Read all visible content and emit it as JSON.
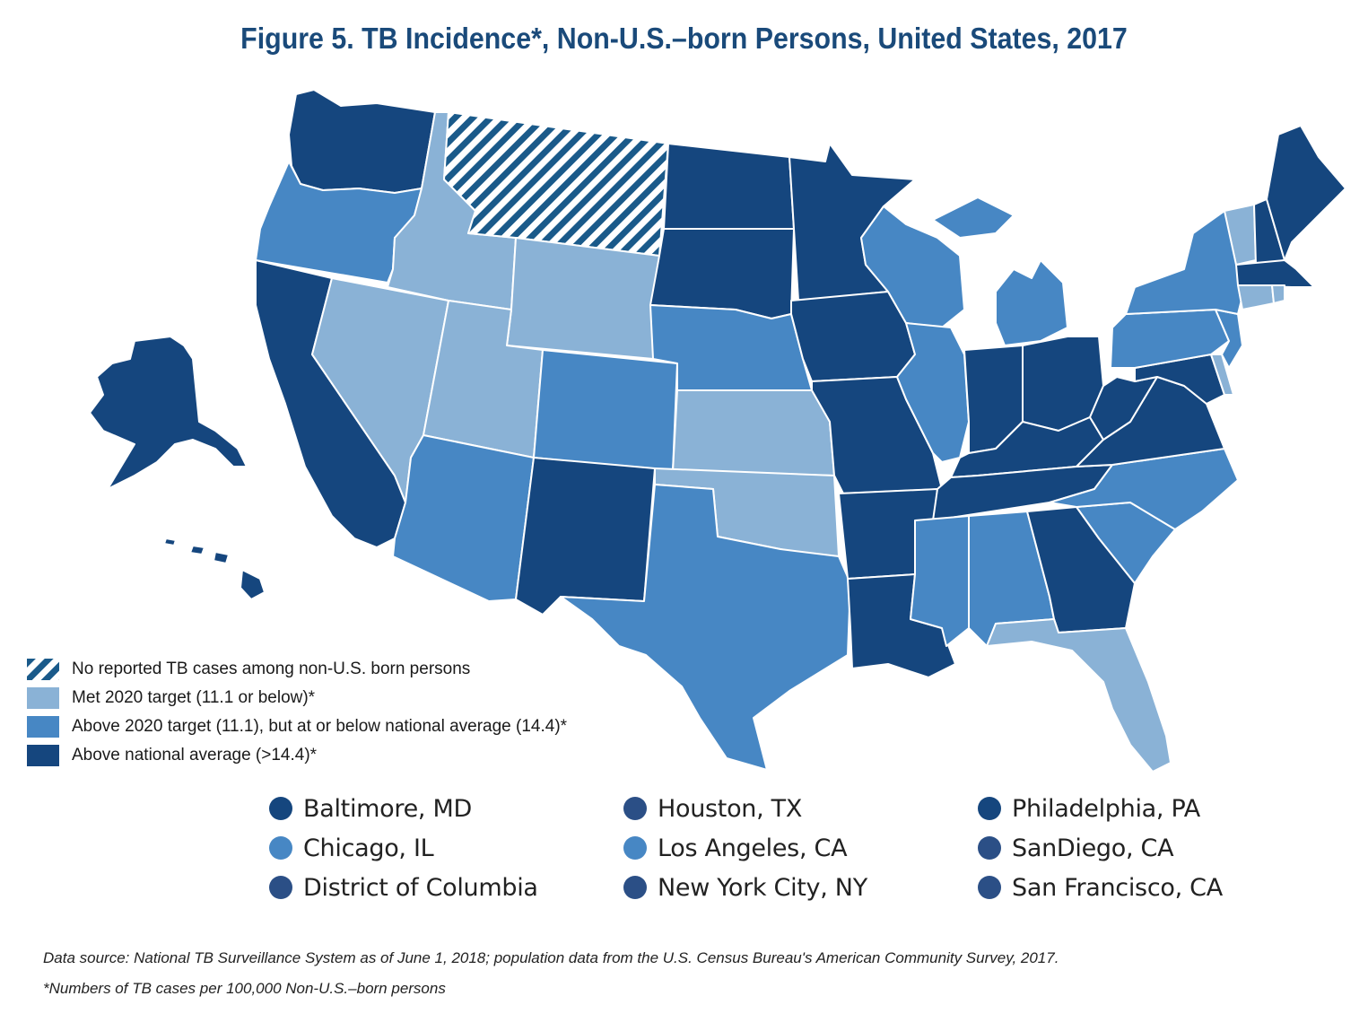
{
  "title": "Figure 5. TB Incidence*, Non-U.S.–born Persons, United States, 2017",
  "colors": {
    "none": "#1a5a8a",
    "met": "#8ab2d6",
    "above_target": "#4787c4",
    "above_national": "#15467e",
    "city_houston": "#2b4f86",
    "border": "#ffffff"
  },
  "legend": [
    {
      "key": "none",
      "label": "No reported TB cases among non-U.S. born persons",
      "pattern": "hatched"
    },
    {
      "key": "met",
      "label": "Met 2020 target (11.1 or below)*"
    },
    {
      "key": "above_target",
      "label": "Above 2020 target (11.1), but at or below national average (14.4)*"
    },
    {
      "key": "above_national",
      "label": "Above national average (>14.4)*"
    }
  ],
  "states": {
    "WA": "above_national",
    "OR": "above_target",
    "CA": "above_national",
    "ID": "met",
    "NV": "met",
    "MT": "none",
    "WY": "met",
    "UT": "met",
    "AZ": "above_target",
    "CO": "above_target",
    "NM": "above_national",
    "ND": "above_national",
    "SD": "above_national",
    "NE": "above_target",
    "KS": "met",
    "OK": "met",
    "TX": "above_target",
    "MN": "above_national",
    "IA": "above_national",
    "MO": "above_national",
    "AR": "above_national",
    "LA": "above_national",
    "WI": "above_target",
    "IL": "above_target",
    "MI": "above_target",
    "IN": "above_national",
    "OH": "above_national",
    "KY": "above_national",
    "TN": "above_national",
    "MS": "above_target",
    "AL": "above_target",
    "GA": "above_national",
    "FL": "met",
    "SC": "above_target",
    "NC": "above_target",
    "VA": "above_national",
    "WV": "above_national",
    "MD": "above_national",
    "DE": "met",
    "NJ": "above_target",
    "PA": "above_target",
    "NY": "above_target",
    "VT": "met",
    "NH": "above_national",
    "ME": "above_national",
    "MA": "above_national",
    "CT": "met",
    "RI": "met",
    "AK": "above_national",
    "HI": "above_national"
  },
  "cities": [
    {
      "label": "Baltimore, MD",
      "key": "above_national"
    },
    {
      "label": "Houston, TX",
      "key": "city_houston"
    },
    {
      "label": "Philadelphia, PA",
      "key": "above_national"
    },
    {
      "label": "Chicago, IL",
      "key": "above_target"
    },
    {
      "label": "Los Angeles, CA",
      "key": "above_target"
    },
    {
      "label": "SanDiego, CA",
      "key": "city_houston"
    },
    {
      "label": "District of Columbia",
      "key": "city_houston"
    },
    {
      "label": "New York City, NY",
      "key": "city_houston"
    },
    {
      "label": "San Francisco, CA",
      "key": "city_houston"
    }
  ],
  "source": "Data source: National TB Surveillance System as of June 1, 2018; population data from the U.S. Census Bureau's American Community Survey, 2017.",
  "footnote": "*Numbers of TB cases per 100,000 Non-U.S.–born persons"
}
